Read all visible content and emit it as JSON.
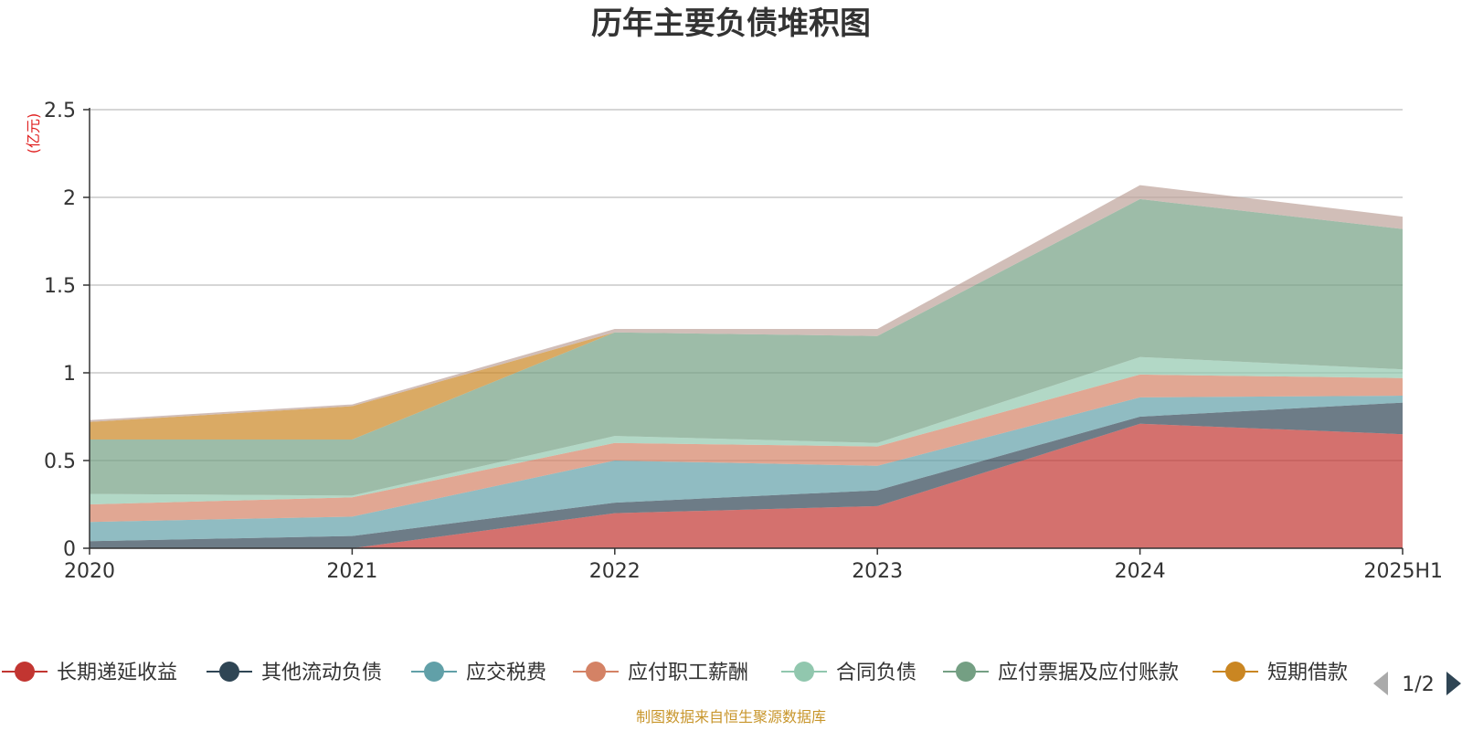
{
  "chart_data": {
    "type": "area",
    "stacked": true,
    "title": "历年主要负债堆积图",
    "unit_label": "(亿元)",
    "categories": [
      "2020",
      "2021",
      "2022",
      "2023",
      "2024",
      "2025H1"
    ],
    "ylim": [
      0,
      2.5
    ],
    "yticks": [
      0,
      0.5,
      1,
      1.5,
      2,
      2.5
    ],
    "ytick_labels": [
      "0",
      "0.5",
      "1",
      "1.5",
      "2",
      "2.5"
    ],
    "grid": true,
    "legend_position": "bottom",
    "series": [
      {
        "name": "长期递延收益",
        "color": "#c23531",
        "values": [
          0.0,
          0.0,
          0.2,
          0.24,
          0.71,
          0.65
        ]
      },
      {
        "name": "其他流动负债",
        "color": "#2f4554",
        "values": [
          0.04,
          0.07,
          0.06,
          0.09,
          0.04,
          0.18
        ]
      },
      {
        "name": "应交税费",
        "color": "#61a0a8",
        "values": [
          0.11,
          0.11,
          0.24,
          0.14,
          0.11,
          0.04
        ]
      },
      {
        "name": "应付职工薪酬",
        "color": "#d48265",
        "values": [
          0.1,
          0.11,
          0.1,
          0.11,
          0.13,
          0.1
        ]
      },
      {
        "name": "合同负债",
        "color": "#91c7ae",
        "values": [
          0.06,
          0.01,
          0.04,
          0.02,
          0.1,
          0.05
        ]
      },
      {
        "name": "应付票据及应付账款",
        "color": "#749f83",
        "values": [
          0.31,
          0.32,
          0.59,
          0.61,
          0.9,
          0.8
        ]
      },
      {
        "name": "短期借款",
        "color": "#ca8622",
        "values": [
          0.1,
          0.19,
          0.0,
          0.0,
          0.0,
          0.0
        ]
      },
      {
        "name": "",
        "color": "#bda29a",
        "values": [
          0.01,
          0.01,
          0.02,
          0.04,
          0.08,
          0.07
        ]
      }
    ],
    "legend_page": "1/2",
    "source_note": "制图数据来自恒生聚源数据库"
  }
}
